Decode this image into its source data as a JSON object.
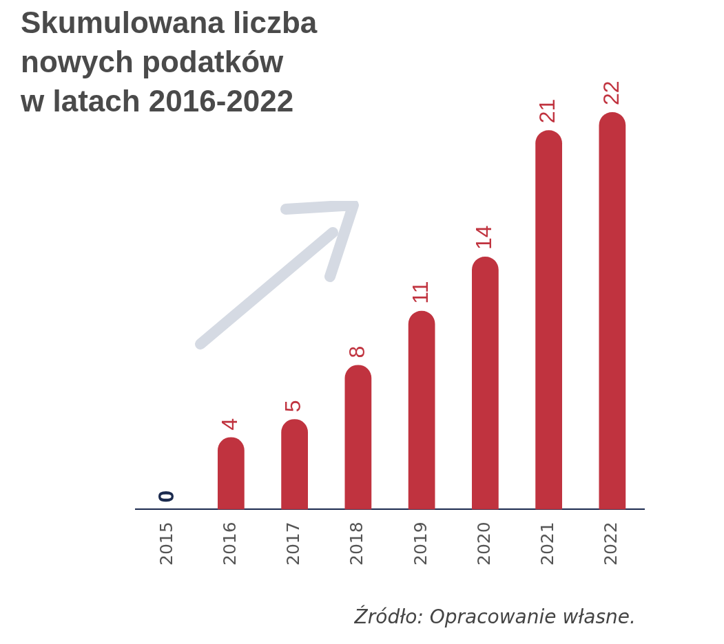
{
  "chart_data": {
    "type": "bar",
    "title": "Skumulowana liczba\nnowych podatków\nw latach 2016-2022",
    "categories": [
      "2015",
      "2016",
      "2017",
      "2018",
      "2019",
      "2020",
      "2021",
      "2022"
    ],
    "values": [
      0,
      4,
      5,
      8,
      11,
      14,
      21,
      22
    ],
    "colors": [
      "#1b2a4e",
      "#c0333f",
      "#c0333f",
      "#c0333f",
      "#c0333f",
      "#c0333f",
      "#c0333f",
      "#c0333f"
    ],
    "data_labels": true,
    "grid": false,
    "legend": false,
    "annotations": [
      "Źródło: Opracowanie własne."
    ]
  }
}
